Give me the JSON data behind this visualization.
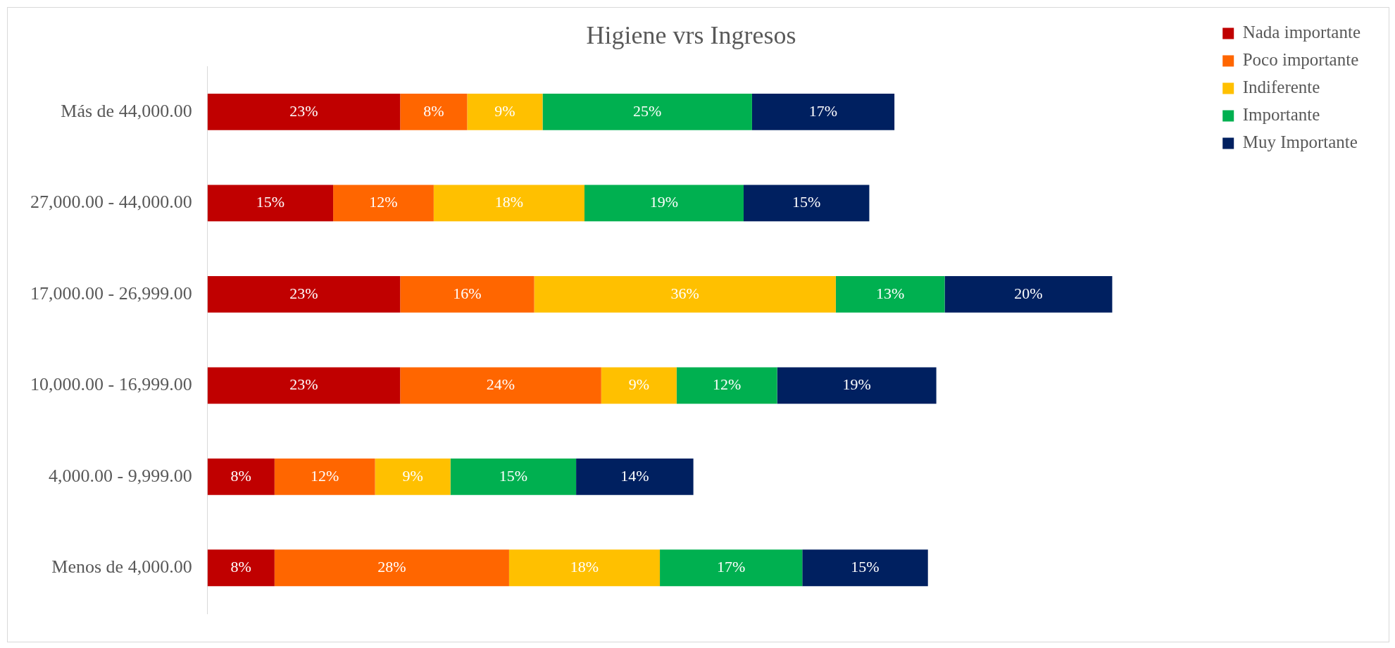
{
  "chart_data": {
    "type": "bar",
    "orientation": "horizontal",
    "stacked": true,
    "title": "Higiene vrs Ingresos",
    "legend": "top right",
    "categories": [
      "Más de 44,000.00",
      "27,000.00 - 44,000.00",
      "17,000.00 - 26,999.00",
      "10,000.00 - 16,999.00",
      "4,000.00 - 9,999.00",
      "Menos de 4,000.00"
    ],
    "series": [
      {
        "name": "Nada importante",
        "color": "#c00000",
        "values": [
          23,
          15,
          23,
          23,
          8,
          8
        ],
        "value_labels": [
          "23%",
          "15%",
          "23%",
          "23%",
          "8%",
          "8%"
        ]
      },
      {
        "name": "Poco importante",
        "color": "#ff6600",
        "values": [
          8,
          12,
          16,
          24,
          12,
          28
        ],
        "value_labels": [
          "8%",
          "12%",
          "16%",
          "24%",
          "12%",
          "28%"
        ]
      },
      {
        "name": "Indiferente",
        "color": "#ffc000",
        "values": [
          9,
          18,
          36,
          9,
          9,
          18
        ],
        "value_labels": [
          "9%",
          "18%",
          "36%",
          "9%",
          "9%",
          "18%"
        ]
      },
      {
        "name": "Importante",
        "color": "#00b050",
        "values": [
          25,
          19,
          13,
          12,
          15,
          17
        ],
        "value_labels": [
          "25%",
          "19%",
          "13%",
          "12%",
          "15%",
          "17%"
        ]
      },
      {
        "name": "Muy Importante",
        "color": "#002060",
        "values": [
          17,
          15,
          20,
          19,
          14,
          15
        ],
        "value_labels": [
          "17%",
          "15%",
          "20%",
          "19%",
          "14%",
          "15%"
        ]
      }
    ]
  }
}
